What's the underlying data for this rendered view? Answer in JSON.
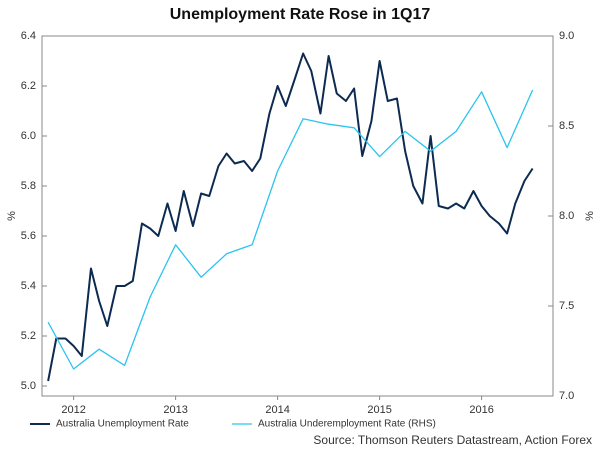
{
  "chart_data": {
    "type": "line",
    "title": "Unemployment Rate Rose in 1Q17",
    "y_label": "%",
    "y2_label": "%",
    "source": "Source: Thomson Reuters Datastream, Action Forex",
    "xlim": [
      2012.19,
      2017.2
    ],
    "xticks": [
      {
        "value": 2012.5,
        "label": "2012"
      },
      {
        "value": 2013.5,
        "label": "2013"
      },
      {
        "value": 2014.5,
        "label": "2014"
      },
      {
        "value": 2015.5,
        "label": "2015"
      },
      {
        "value": 2016.5,
        "label": "2016"
      }
    ],
    "ylim": [
      4.96,
      6.4
    ],
    "yticks": [
      {
        "value": 5,
        "label": "5.0"
      },
      5.2,
      5.4,
      5.6,
      5.8,
      {
        "value": 6,
        "label": "6.0"
      },
      6.2,
      6.4
    ],
    "y2lim": [
      7,
      9
    ],
    "y2ticks": [
      {
        "value": 7,
        "label": "7.0"
      },
      7.5,
      {
        "value": 8,
        "label": "8.0"
      },
      8.5,
      {
        "value": 9,
        "label": "9.0"
      }
    ],
    "legend": "bottom",
    "series": [
      {
        "name": "Australia Unemployment Rate",
        "color": "#0d2b50",
        "x": [
          2012.25,
          2012.33,
          2012.42,
          2012.5,
          2012.58,
          2012.67,
          2012.75,
          2012.83,
          2012.92,
          2013.0,
          2013.08,
          2013.17,
          2013.25,
          2013.33,
          2013.42,
          2013.5,
          2013.58,
          2013.67,
          2013.75,
          2013.83,
          2013.92,
          2014.0,
          2014.08,
          2014.17,
          2014.25,
          2014.33,
          2014.42,
          2014.5,
          2014.58,
          2014.67,
          2014.75,
          2014.83,
          2014.92,
          2015.0,
          2015.08,
          2015.17,
          2015.25,
          2015.33,
          2015.42,
          2015.5,
          2015.58,
          2015.67,
          2015.75,
          2015.83,
          2015.92,
          2016.0,
          2016.08,
          2016.17,
          2016.25,
          2016.33,
          2016.42,
          2016.5,
          2016.58,
          2016.67,
          2016.75,
          2016.83,
          2016.92,
          2017.0
        ],
        "values": [
          5.02,
          5.19,
          5.19,
          5.16,
          5.12,
          5.47,
          5.34,
          5.24,
          5.4,
          5.4,
          5.42,
          5.65,
          5.63,
          5.6,
          5.73,
          5.62,
          5.78,
          5.64,
          5.77,
          5.76,
          5.88,
          5.93,
          5.89,
          5.9,
          5.86,
          5.91,
          6.09,
          6.2,
          6.12,
          6.23,
          6.33,
          6.26,
          6.09,
          6.32,
          6.17,
          6.14,
          6.19,
          5.92,
          6.06,
          6.3,
          6.14,
          6.15,
          5.94,
          5.8,
          5.73,
          6.0,
          5.72,
          5.71,
          5.73,
          5.71,
          5.78,
          5.72,
          5.68,
          5.65,
          5.61,
          5.73,
          5.82,
          5.87
        ]
      },
      {
        "name": "Australia Underemployment Rate (RHS)",
        "color": "#2cc3ee",
        "axis": "y2",
        "x": [
          2012.25,
          2012.5,
          2012.75,
          2013.0,
          2013.25,
          2013.5,
          2013.75,
          2014.0,
          2014.25,
          2014.5,
          2014.75,
          2015.0,
          2015.25,
          2015.5,
          2015.75,
          2016.0,
          2016.25,
          2016.5,
          2016.75,
          2017.0
        ],
        "values": [
          7.41,
          7.15,
          7.26,
          7.17,
          7.55,
          7.84,
          7.66,
          7.79,
          7.84,
          8.25,
          8.54,
          8.51,
          8.49,
          8.33,
          8.47,
          8.36,
          8.47,
          8.69,
          8.38,
          8.7
        ]
      }
    ]
  }
}
